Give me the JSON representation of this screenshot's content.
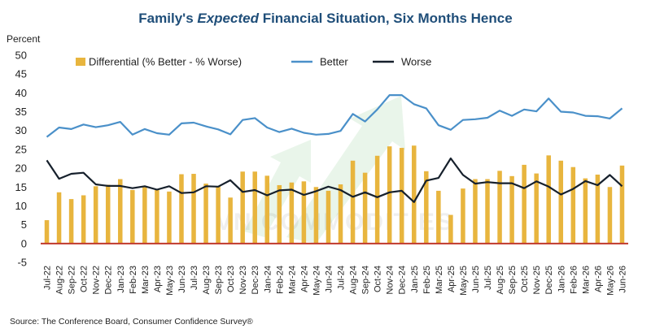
{
  "chart_data": {
    "type": "bar",
    "title_parts": [
      "Family's ",
      "Expected",
      " Financial Situation, Six Months Hence"
    ],
    "ylabel": "Percent",
    "ylim": [
      -5,
      50
    ],
    "yticks": [
      -5,
      0,
      5,
      10,
      15,
      20,
      25,
      30,
      35,
      40,
      45,
      50
    ],
    "grid": false,
    "legend_position": "top",
    "categories": [
      "Jul-22",
      "Aug-22",
      "Sep-22",
      "Oct-22",
      "Nov-22",
      "Dec-22",
      "Jan-23",
      "Feb-23",
      "Mar-23",
      "Apr-23",
      "May-23",
      "Jun-23",
      "Jul-23",
      "Aug-23",
      "Sep-23",
      "Oct-23",
      "Nov-23",
      "Dec-23",
      "Jan-24",
      "Feb-24",
      "Mar-24",
      "Apr-24",
      "May-24",
      "Jun-24",
      "Jul-24",
      "Aug-24",
      "Sep-24",
      "Oct-24",
      "Nov-24",
      "Dec-24",
      "Jan-25",
      "Feb-25",
      "Mar-25",
      "Apr-25",
      "May-25",
      "Jun-25",
      "Jul-25",
      "Aug-25",
      "Sep-25",
      "Oct-25",
      "Nov-25",
      "Dec-25",
      "Jan-26",
      "Feb-26",
      "Mar-26",
      "Apr-26",
      "May-26",
      "Jun-26"
    ],
    "series": [
      {
        "name": "Differential (% Better - % Worse)",
        "kind": "bar",
        "color": "#e8b53e",
        "values": [
          6.2,
          13.6,
          11.8,
          12.8,
          15.2,
          15.6,
          17.1,
          14.2,
          15.2,
          14.3,
          13.8,
          18.4,
          18.5,
          15.9,
          15.2,
          12.2,
          19.1,
          19.1,
          18.0,
          15.5,
          16.2,
          16.5,
          15.0,
          14.0,
          15.7,
          22.0,
          18.8,
          23.3,
          25.8,
          25.4,
          26.0,
          19.2,
          14.0,
          7.6,
          14.6,
          17.1,
          17.1,
          19.3,
          17.9,
          20.9,
          18.6,
          23.4,
          22.0,
          20.3,
          17.3,
          18.3,
          15.0,
          20.7
        ]
      },
      {
        "name": "Better",
        "kind": "line",
        "color": "#4a90c9",
        "values": [
          28.3,
          30.8,
          30.4,
          31.6,
          30.9,
          31.4,
          32.3,
          28.9,
          30.4,
          29.3,
          28.9,
          31.9,
          32.1,
          31.1,
          30.3,
          29.0,
          32.8,
          33.3,
          30.8,
          29.6,
          30.5,
          29.4,
          28.9,
          29.1,
          29.9,
          34.4,
          32.4,
          35.6,
          39.4,
          39.4,
          37.0,
          35.9,
          31.4,
          30.2,
          32.8,
          33.0,
          33.4,
          35.3,
          33.9,
          35.6,
          35.1,
          38.5,
          35.0,
          34.8,
          33.9,
          33.8,
          33.2,
          35.9
        ]
      },
      {
        "name": "Worse",
        "kind": "line",
        "color": "#16202c",
        "values": [
          22.1,
          17.2,
          18.5,
          18.8,
          15.7,
          15.3,
          15.3,
          14.7,
          15.2,
          14.3,
          15.2,
          13.4,
          13.6,
          15.2,
          15.1,
          16.8,
          13.7,
          14.2,
          12.8,
          14.1,
          14.3,
          12.9,
          13.9,
          15.1,
          14.2,
          12.4,
          13.6,
          12.3,
          13.6,
          14.0,
          11.0,
          16.7,
          17.4,
          22.6,
          18.2,
          15.9,
          16.3,
          16.0,
          16.0,
          14.7,
          16.5,
          15.1,
          13.0,
          14.5,
          16.6,
          15.5,
          18.2,
          15.2
        ]
      }
    ],
    "source": "Source: The Conference Board, Consumer Confidence Survey®",
    "watermark": "VN COMMODITIES"
  }
}
